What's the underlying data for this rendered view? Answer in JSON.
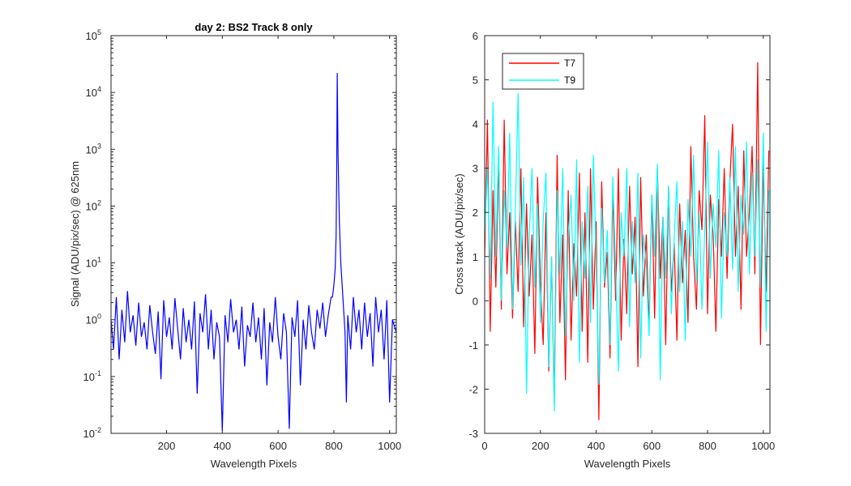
{
  "chart_data": [
    {
      "type": "line",
      "title": "day 2: BS2   Track 8 only",
      "xlabel": "Wavelength Pixels",
      "ylabel": "Signal (ADU/pix/sec) @ 625nm",
      "xlim": [
        1,
        1024
      ],
      "ylim": [
        0.01,
        100000
      ],
      "yscale": "log",
      "xticks": [
        200,
        400,
        600,
        800,
        1000
      ],
      "yticks": [
        {
          "base": "10",
          "exp": "-2",
          "value": 0.01
        },
        {
          "base": "10",
          "exp": "-1",
          "value": 0.1
        },
        {
          "base": "10",
          "exp": "0",
          "value": 1
        },
        {
          "base": "10",
          "exp": "1",
          "value": 10
        },
        {
          "base": "10",
          "exp": "2",
          "value": 100
        },
        {
          "base": "10",
          "exp": "3",
          "value": 1000
        },
        {
          "base": "10",
          "exp": "4",
          "value": 10000
        },
        {
          "base": "10",
          "exp": "5",
          "value": 100000
        }
      ],
      "grid": false,
      "series": [
        {
          "color": "#0000ff",
          "x": [
            1,
            10,
            20,
            30,
            40,
            50,
            60,
            70,
            80,
            90,
            100,
            110,
            120,
            130,
            140,
            150,
            160,
            170,
            180,
            190,
            200,
            210,
            220,
            230,
            240,
            250,
            260,
            270,
            280,
            290,
            300,
            310,
            320,
            330,
            340,
            350,
            360,
            370,
            380,
            390,
            400,
            410,
            420,
            430,
            440,
            450,
            460,
            470,
            480,
            490,
            500,
            510,
            520,
            530,
            540,
            550,
            560,
            570,
            580,
            590,
            600,
            610,
            620,
            630,
            640,
            650,
            660,
            670,
            680,
            690,
            700,
            710,
            720,
            730,
            740,
            750,
            760,
            770,
            780,
            790,
            795,
            800,
            805,
            808,
            810,
            812,
            815,
            820,
            825,
            830,
            835,
            840,
            845,
            850,
            860,
            870,
            880,
            890,
            900,
            910,
            920,
            930,
            940,
            950,
            960,
            970,
            980,
            990,
            1000,
            1010,
            1024
          ],
          "y": [
            1.0,
            0.3,
            2.5,
            0.2,
            1.5,
            0.4,
            3.2,
            0.6,
            1.2,
            0.35,
            2.0,
            0.5,
            0.9,
            0.3,
            1.8,
            0.6,
            0.25,
            1.4,
            0.09,
            2.2,
            0.5,
            1.1,
            0.3,
            2.4,
            0.7,
            0.2,
            1.6,
            0.4,
            1.0,
            0.3,
            2.1,
            0.05,
            1.3,
            0.6,
            2.8,
            0.3,
            1.5,
            0.2,
            0.9,
            0.5,
            0.011,
            1.2,
            0.4,
            2.3,
            0.6,
            1.0,
            0.3,
            1.7,
            0.15,
            0.8,
            0.5,
            2.0,
            0.4,
            1.1,
            0.2,
            1.6,
            0.07,
            0.9,
            0.4,
            2.5,
            0.5,
            0.2,
            1.3,
            0.6,
            0.012,
            1.1,
            0.5,
            2.2,
            0.07,
            1.0,
            0.3,
            1.8,
            0.6,
            0.3,
            1.5,
            0.7,
            2.0,
            0.5,
            1.2,
            2.5,
            2.5,
            4.0,
            8.0,
            30.0,
            300.0,
            22000.0,
            800.0,
            50.0,
            10.0,
            4.0,
            1.5,
            0.6,
            0.035,
            1.2,
            0.3,
            2.5,
            0.6,
            1.5,
            0.3,
            2.0,
            0.5,
            1.3,
            0.15,
            2.5,
            0.6,
            1.5,
            0.2,
            2.2,
            0.035,
            1.0,
            0.6
          ]
        }
      ]
    },
    {
      "type": "line",
      "title": "",
      "xlabel": "Wavelength Pixels",
      "ylabel": "Cross track (ADU/pix/sec)",
      "xlim": [
        0,
        1024
      ],
      "ylim": [
        -3,
        6
      ],
      "xticks": [
        0,
        200,
        400,
        600,
        800,
        1000
      ],
      "yticks": [
        -3,
        -2,
        -1,
        0,
        1,
        2,
        3,
        4,
        5,
        6
      ],
      "grid": false,
      "legend": "top-left",
      "series": [
        {
          "name": "T7",
          "color": "#ff0000",
          "x": [
            0,
            10,
            20,
            30,
            40,
            50,
            60,
            70,
            80,
            90,
            100,
            110,
            120,
            130,
            140,
            150,
            160,
            170,
            180,
            190,
            200,
            210,
            220,
            230,
            240,
            250,
            260,
            270,
            280,
            290,
            300,
            310,
            320,
            330,
            340,
            350,
            360,
            370,
            380,
            390,
            400,
            410,
            420,
            430,
            440,
            450,
            460,
            470,
            480,
            490,
            500,
            510,
            520,
            530,
            540,
            550,
            560,
            570,
            580,
            590,
            600,
            610,
            620,
            630,
            640,
            650,
            660,
            670,
            680,
            690,
            700,
            710,
            720,
            730,
            740,
            750,
            760,
            770,
            780,
            790,
            800,
            810,
            820,
            830,
            840,
            850,
            860,
            870,
            880,
            890,
            900,
            910,
            920,
            930,
            940,
            950,
            960,
            970,
            980,
            990,
            1000,
            1010,
            1020
          ],
          "y": [
            1.0,
            4.1,
            -0.7,
            2.5,
            0.3,
            3.2,
            -0.2,
            4.1,
            0.6,
            2.0,
            -0.4,
            1.8,
            0.2,
            3.0,
            -0.6,
            2.2,
            0.1,
            1.5,
            -1.2,
            2.8,
            0.4,
            -1.0,
            2.0,
            -1.6,
            1.0,
            -2.3,
            3.3,
            -0.5,
            1.5,
            -1.8,
            2.5,
            -0.9,
            1.3,
            0.1,
            2.9,
            -0.7,
            2.0,
            -1.4,
            3.0,
            -0.2,
            1.8,
            -2.7,
            2.7,
            0.3,
            1.1,
            -1.3,
            2.5,
            0.0,
            3.0,
            -0.9,
            1.4,
            -0.3,
            2.6,
            0.6,
            1.9,
            -1.5,
            2.8,
            0.1,
            1.5,
            -0.6,
            2.4,
            -0.4,
            3.0,
            0.5,
            1.9,
            -1.0,
            2.6,
            0.2,
            1.3,
            -0.9,
            2.2,
            0.4,
            1.6,
            -0.5,
            3.5,
            1.0,
            -0.2,
            2.5,
            1.6,
            4.2,
            -0.3,
            2.4,
            1.5,
            -0.7,
            2.3,
            1.0,
            3.0,
            0.5,
            2.7,
            4.0,
            1.0,
            2.6,
            -0.2,
            3.4,
            1.0,
            2.0,
            3.5,
            0.6,
            5.4,
            -1.0,
            3.2,
            0.2,
            3.4
          ]
        },
        {
          "name": "T9",
          "color": "#00ffff",
          "x": [
            0,
            10,
            20,
            30,
            40,
            50,
            60,
            70,
            80,
            90,
            100,
            110,
            120,
            130,
            140,
            150,
            160,
            170,
            180,
            190,
            200,
            210,
            220,
            230,
            240,
            250,
            260,
            270,
            280,
            290,
            300,
            310,
            320,
            330,
            340,
            350,
            360,
            370,
            380,
            390,
            400,
            410,
            420,
            430,
            440,
            450,
            460,
            470,
            480,
            490,
            500,
            510,
            520,
            530,
            540,
            550,
            560,
            570,
            580,
            590,
            600,
            610,
            620,
            630,
            640,
            650,
            660,
            670,
            680,
            690,
            700,
            710,
            720,
            730,
            740,
            750,
            760,
            770,
            780,
            790,
            800,
            810,
            820,
            830,
            840,
            850,
            860,
            870,
            880,
            890,
            900,
            910,
            920,
            930,
            940,
            950,
            960,
            970,
            980,
            990,
            1000,
            1010,
            1020
          ],
          "y": [
            1.5,
            3.0,
            0.5,
            4.5,
            1.0,
            3.5,
            0.0,
            2.5,
            1.2,
            3.8,
            -0.2,
            2.0,
            4.7,
            0.8,
            2.8,
            -2.1,
            1.5,
            3.0,
            0.3,
            2.2,
            -0.5,
            1.8,
            2.9,
            -1.5,
            1.0,
            -2.5,
            2.5,
            0.6,
            3.0,
            -0.8,
            1.4,
            2.4,
            0.0,
            3.2,
            -1.4,
            1.8,
            0.5,
            2.6,
            -0.5,
            3.3,
            1.0,
            -1.9,
            2.1,
            0.4,
            1.6,
            -1.0,
            2.8,
            0.7,
            -1.6,
            2.0,
            1.0,
            3.0,
            -0.6,
            1.8,
            0.4,
            2.9,
            -1.3,
            1.5,
            0.8,
            -0.8,
            2.4,
            1.0,
            3.1,
            -1.8,
            1.9,
            0.5,
            2.6,
            -0.3,
            1.4,
            2.7,
            0.2,
            1.8,
            -0.9,
            2.3,
            1.0,
            3.3,
            0.4,
            2.0,
            -0.2,
            1.6,
            3.6,
            0.5,
            2.2,
            1.2,
            3.4,
            -0.4,
            2.0,
            1.0,
            2.8,
            0.7,
            3.5,
            0.2,
            2.4,
            1.5,
            3.6,
            0.6,
            2.9,
            1.0,
            3.2,
            0.3,
            3.8,
            -0.7,
            2.5
          ]
        }
      ]
    }
  ]
}
